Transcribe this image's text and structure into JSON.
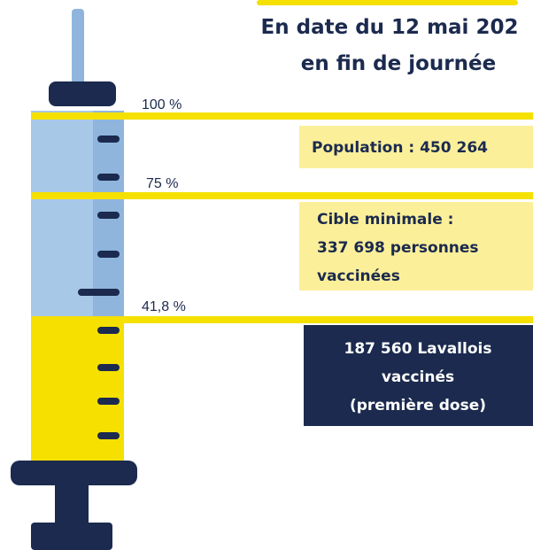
{
  "header": {
    "title_lines": [
      "En date du 12 mai 202",
      "en fin de journée"
    ]
  },
  "levels": [
    {
      "label": "100 %"
    },
    {
      "label": "75 %"
    },
    {
      "label": "41,8 %"
    }
  ],
  "boxes": [
    {
      "lines": [
        "Population : 450 264"
      ]
    },
    {
      "lines": [
        "Cible minimale :",
        "337 698 personnes",
        "vaccinées"
      ]
    },
    {
      "lines": [
        "187 560 Lavallois",
        "vaccinés",
        "(première dose)"
      ]
    }
  ]
}
